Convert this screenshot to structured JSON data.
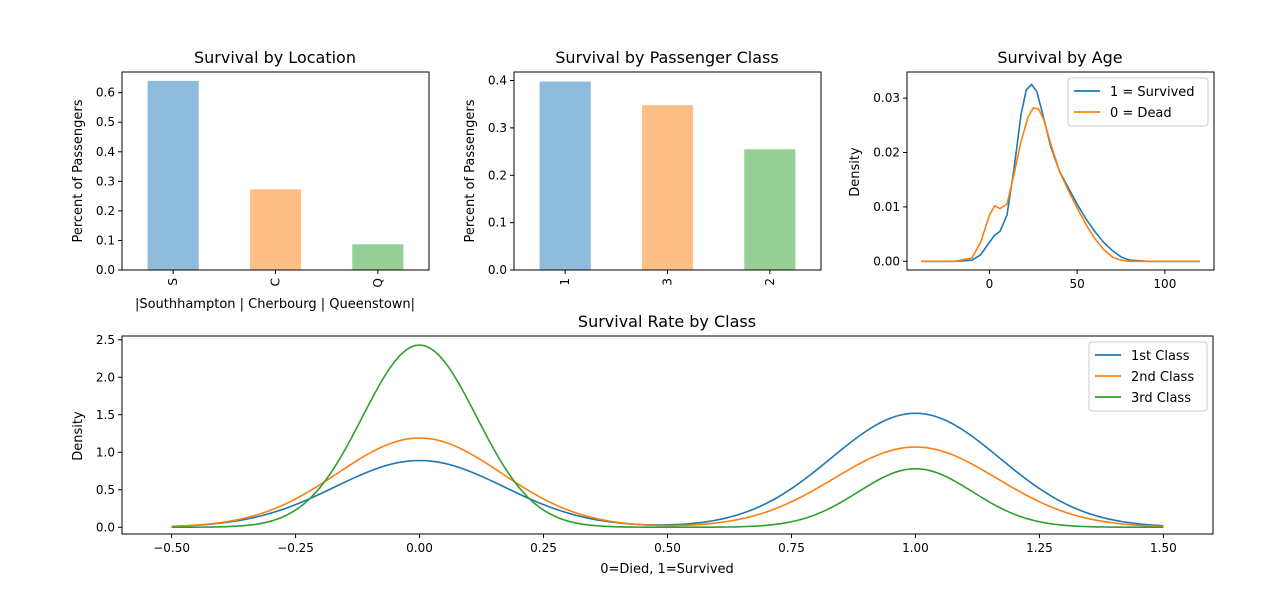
{
  "chart_data": [
    {
      "id": "location",
      "type": "bar",
      "title": "Survival by Location",
      "xlabel": "|Southhampton | Cherbourg | Queenstown|",
      "ylabel": "Percent of Passengers",
      "categories": [
        "S",
        "C",
        "Q"
      ],
      "values": [
        0.64,
        0.273,
        0.087
      ],
      "colors": [
        "#8fbbdc",
        "#ffbe86",
        "#96d096"
      ],
      "ylim": [
        0,
        0.67
      ],
      "yticks": [
        "0.0",
        "0.1",
        "0.2",
        "0.3",
        "0.4",
        "0.5",
        "0.6"
      ],
      "xtick_rotation": "vertical",
      "grid": false
    },
    {
      "id": "pclass",
      "type": "bar",
      "title": "Survival by Passenger Class",
      "xlabel": "",
      "ylabel": "Percent of Passengers",
      "categories": [
        "1",
        "3",
        "2"
      ],
      "values": [
        0.398,
        0.348,
        0.255
      ],
      "colors": [
        "#8fbbdc",
        "#ffbe86",
        "#96d096"
      ],
      "ylim": [
        0,
        0.418
      ],
      "yticks": [
        "0.0",
        "0.1",
        "0.2",
        "0.3",
        "0.4"
      ],
      "xtick_rotation": "vertical",
      "grid": false
    },
    {
      "id": "age",
      "type": "line",
      "title": "Survival by Age",
      "xlabel": "",
      "ylabel": "Density",
      "xlim": [
        -47,
        128
      ],
      "ylim": [
        -0.0016,
        0.0348
      ],
      "xticks": [
        "0",
        "50",
        "100"
      ],
      "yticks": [
        "0.00",
        "0.01",
        "0.02",
        "0.03"
      ],
      "legend": "top-right",
      "series": [
        {
          "name": "1 = Survived",
          "color": "#1f77b4",
          "x": [
            -39,
            -20,
            -10,
            -5,
            0,
            3,
            6,
            10,
            14,
            18,
            21,
            24,
            27,
            30,
            35,
            40,
            45,
            50,
            55,
            60,
            65,
            70,
            75,
            80,
            90,
            100,
            120
          ],
          "y": [
            0,
            0,
            0.0002,
            0.0012,
            0.0035,
            0.0048,
            0.0055,
            0.0085,
            0.017,
            0.027,
            0.0315,
            0.0325,
            0.0312,
            0.0275,
            0.021,
            0.0165,
            0.0135,
            0.0105,
            0.0078,
            0.0055,
            0.0035,
            0.002,
            0.0008,
            0.0002,
            0,
            0,
            0
          ]
        },
        {
          "name": "0 = Dead",
          "color": "#ff7f0e",
          "x": [
            -39,
            -20,
            -10,
            -5,
            0,
            3,
            6,
            10,
            14,
            18,
            22,
            25,
            28,
            31,
            35,
            40,
            45,
            50,
            55,
            60,
            65,
            70,
            75,
            80,
            90,
            100,
            120
          ],
          "y": [
            0,
            0,
            0.0006,
            0.0035,
            0.0085,
            0.0102,
            0.0097,
            0.0105,
            0.016,
            0.022,
            0.0265,
            0.0282,
            0.028,
            0.026,
            0.0215,
            0.0165,
            0.013,
            0.0098,
            0.0068,
            0.0042,
            0.0022,
            0.0008,
            0.0002,
            0,
            0,
            0,
            0
          ]
        }
      ]
    },
    {
      "id": "class_rate",
      "type": "line",
      "title": "Survival Rate by Class",
      "xlabel": "0=Died, 1=Survived",
      "ylabel": "Density",
      "xlim": [
        -0.6,
        1.6
      ],
      "ylim": [
        -0.09,
        2.55
      ],
      "xticks": [
        "−0.50",
        "−0.25",
        "0.00",
        "0.25",
        "0.50",
        "0.75",
        "1.00",
        "1.25",
        "1.50"
      ],
      "yticks": [
        "0.0",
        "0.5",
        "1.0",
        "1.5",
        "2.0",
        "2.5"
      ],
      "legend": "top-right",
      "series": [
        {
          "name": "1st Class",
          "color": "#1f77b4",
          "kde": {
            "x0": 0,
            "x1": 1,
            "peak0": 0.89,
            "peak1": 1.52,
            "bw0": 0.17,
            "bw1": 0.17
          },
          "x_range": [
            -0.5,
            1.5
          ]
        },
        {
          "name": "2nd Class",
          "color": "#ff7f0e",
          "kde": {
            "x0": 0,
            "x1": 1,
            "peak0": 1.19,
            "peak1": 1.07,
            "bw0": 0.165,
            "bw1": 0.165
          },
          "x_range": [
            -0.5,
            1.5
          ]
        },
        {
          "name": "3rd Class",
          "color": "#2ca02c",
          "kde": {
            "x0": 0,
            "x1": 1,
            "peak0": 2.43,
            "peak1": 0.78,
            "bw0": 0.115,
            "bw1": 0.115
          },
          "x_range": [
            -0.5,
            1.5
          ]
        }
      ]
    }
  ]
}
